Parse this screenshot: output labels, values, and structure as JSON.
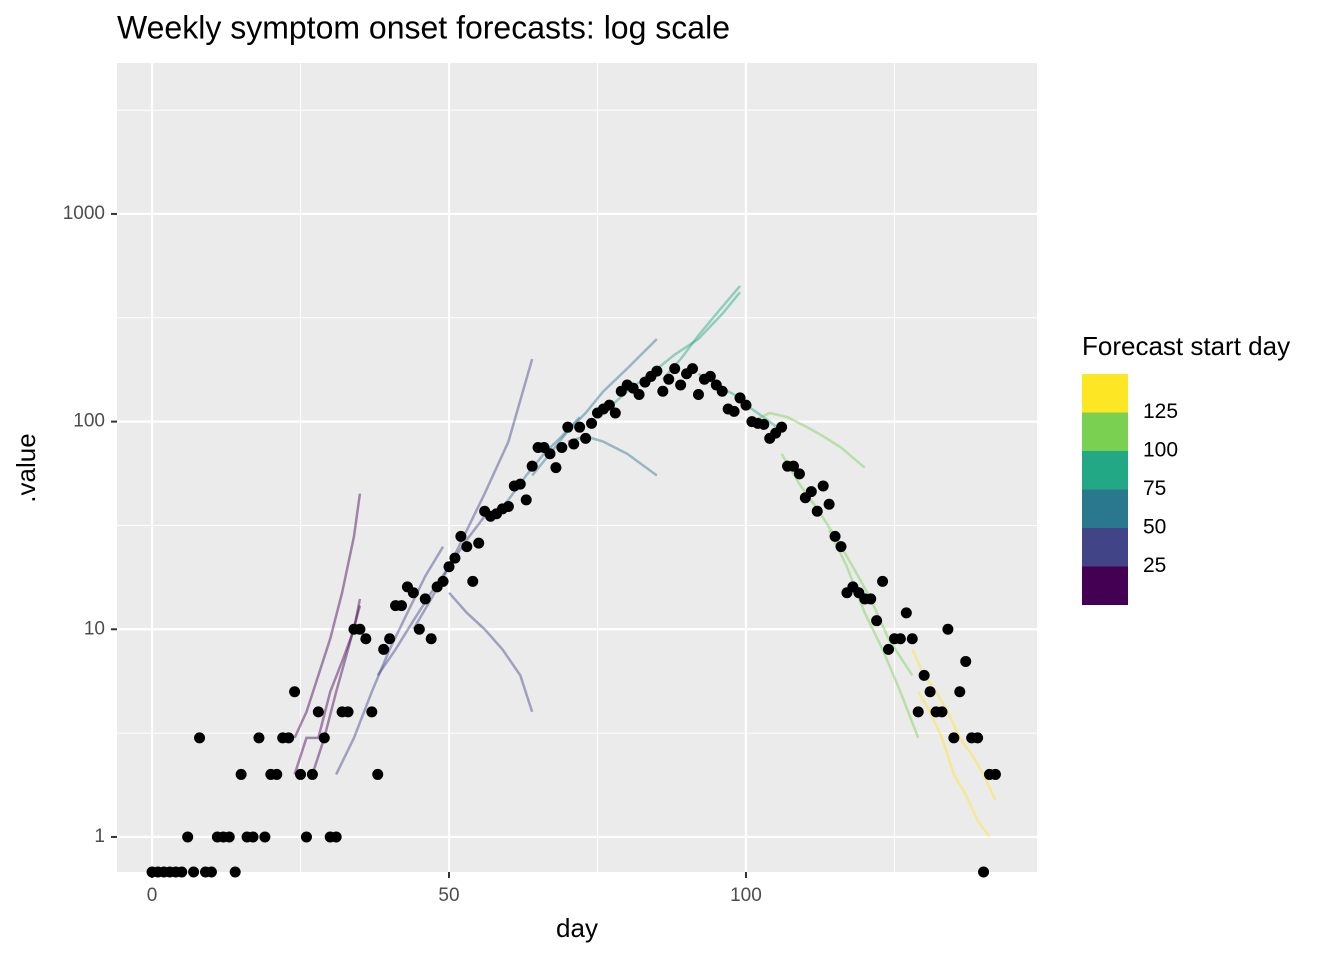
{
  "chart_data": {
    "type": "scatter",
    "title": "Weekly symptom onset forecasts: log scale",
    "x_label": "day",
    "y_label": ".value",
    "log_y": true,
    "grid": true,
    "xlim": [
      -5.9,
      149
    ],
    "xticks": [
      0,
      50,
      100
    ],
    "xminor": [
      25,
      75,
      125
    ],
    "ylim": [
      0.678,
      5330
    ],
    "yticks": [
      1,
      10,
      100,
      1000
    ],
    "yminor": [
      0.3162,
      3.162,
      31.62,
      316.2,
      3162
    ],
    "point_color": "#000000",
    "x": [
      0,
      1,
      2,
      3,
      4,
      5,
      6,
      7,
      8,
      9,
      10,
      11,
      12,
      13,
      14,
      15,
      16,
      17,
      18,
      19,
      20,
      21,
      22,
      23,
      24,
      25,
      26,
      27,
      28,
      29,
      30,
      31,
      32,
      33,
      34,
      35,
      36,
      37,
      38,
      39,
      40,
      41,
      42,
      43,
      44,
      45,
      46,
      47,
      48,
      49,
      50,
      51,
      52,
      53,
      54,
      55,
      56,
      57,
      58,
      59,
      60,
      61,
      62,
      63,
      64,
      65,
      66,
      67,
      68,
      69,
      70,
      71,
      72,
      73,
      74,
      75,
      76,
      77,
      78,
      79,
      80,
      81,
      82,
      83,
      84,
      85,
      86,
      87,
      88,
      89,
      90,
      91,
      92,
      93,
      94,
      95,
      96,
      97,
      98,
      99,
      100,
      101,
      102,
      103,
      104,
      105,
      106,
      107,
      108,
      109,
      110,
      111,
      112,
      113,
      114,
      115,
      116,
      117,
      118,
      119,
      120,
      121,
      122,
      123,
      124,
      125,
      126,
      127,
      128,
      129,
      130,
      131,
      132,
      133,
      134,
      135,
      136,
      137,
      138,
      139,
      140,
      141,
      142
    ],
    "values": [
      0,
      0,
      0,
      0,
      0,
      0,
      1,
      0,
      3,
      0,
      0,
      1,
      1,
      1,
      0,
      2,
      1,
      1,
      3,
      1,
      2,
      2,
      3,
      3,
      5,
      2,
      1,
      2,
      4,
      3,
      1,
      1,
      4,
      4,
      10,
      10,
      9,
      4,
      2,
      8,
      9,
      13,
      13,
      16,
      15,
      10,
      14,
      9,
      16,
      17,
      20,
      22,
      28,
      25,
      17,
      26,
      37,
      35,
      36,
      38,
      39,
      49,
      50,
      42,
      61,
      75,
      75,
      70,
      60,
      75,
      94,
      78,
      94,
      83,
      98,
      110,
      115,
      120,
      110,
      140,
      150,
      145,
      135,
      155,
      165,
      175,
      140,
      160,
      180,
      150,
      170,
      180,
      135,
      160,
      165,
      150,
      140,
      115,
      112,
      130,
      120,
      100,
      98,
      97,
      83,
      88,
      94,
      61,
      61,
      56,
      43,
      46,
      37,
      49,
      40,
      28,
      25,
      15,
      16,
      15,
      14,
      14,
      11,
      17,
      8,
      9,
      9,
      12,
      9,
      4,
      6,
      5,
      4,
      4,
      10,
      3,
      5,
      7,
      3,
      3,
      0,
      2,
      2
    ],
    "forecasts": [
      {
        "color": "#440154",
        "x": [
          24,
          26,
          28,
          30,
          32,
          34,
          35
        ],
        "values": [
          3,
          4,
          6,
          9,
          15,
          28,
          45
        ]
      },
      {
        "color": "#440154",
        "x": [
          24,
          26,
          28,
          30,
          32,
          34,
          35
        ],
        "values": [
          2,
          3,
          3,
          5,
          7,
          10,
          14
        ]
      },
      {
        "color": "#440154",
        "x": [
          27,
          29,
          31,
          33,
          35
        ],
        "values": [
          2,
          3,
          5,
          8,
          13
        ]
      },
      {
        "color": "#414487",
        "x": [
          31,
          34,
          37,
          40,
          43,
          46,
          49
        ],
        "values": [
          2,
          3,
          5,
          8,
          12,
          18,
          25
        ]
      },
      {
        "color": "#414487",
        "x": [
          38,
          41,
          44,
          47,
          50,
          53,
          56
        ],
        "values": [
          6,
          8,
          11,
          15,
          20,
          27,
          35
        ]
      },
      {
        "color": "#414487",
        "x": [
          44,
          47,
          50,
          53,
          56,
          60,
          64
        ],
        "values": [
          10,
          14,
          20,
          30,
          45,
          80,
          200
        ]
      },
      {
        "color": "#414487",
        "x": [
          50,
          53,
          56,
          59,
          62,
          64
        ],
        "values": [
          15,
          12,
          10,
          8,
          6,
          4
        ]
      },
      {
        "color": "#2a788e",
        "x": [
          57,
          60,
          63,
          66,
          69,
          72
        ],
        "values": [
          33,
          42,
          55,
          70,
          85,
          105
        ]
      },
      {
        "color": "#2a788e",
        "x": [
          64,
          67,
          70,
          73,
          76,
          80,
          85
        ],
        "values": [
          55,
          70,
          90,
          110,
          140,
          180,
          250
        ]
      },
      {
        "color": "#2a788e",
        "x": [
          70,
          73,
          76,
          80,
          85
        ],
        "values": [
          80,
          85,
          80,
          70,
          55
        ]
      },
      {
        "color": "#22a884",
        "x": [
          76,
          80,
          84,
          88,
          92,
          96,
          99
        ],
        "values": [
          110,
          140,
          170,
          210,
          250,
          330,
          420
        ]
      },
      {
        "color": "#22a884",
        "x": [
          86,
          89,
          92,
          95,
          99
        ],
        "values": [
          160,
          200,
          260,
          330,
          450
        ]
      },
      {
        "color": "#22a884",
        "x": [
          92,
          95,
          98,
          101,
          104,
          106
        ],
        "values": [
          170,
          150,
          135,
          115,
          100,
          90
        ]
      },
      {
        "color": "#7ad151",
        "x": [
          101,
          104,
          107,
          110,
          113,
          116,
          120
        ],
        "values": [
          100,
          110,
          105,
          95,
          85,
          75,
          60
        ]
      },
      {
        "color": "#7ad151",
        "x": [
          106,
          109,
          112,
          115,
          118,
          121,
          124,
          128
        ],
        "values": [
          70,
          50,
          38,
          28,
          20,
          14,
          9,
          6
        ]
      },
      {
        "color": "#7ad151",
        "x": [
          114,
          117,
          120,
          123,
          126,
          129
        ],
        "values": [
          30,
          20,
          12,
          8,
          5,
          3
        ]
      },
      {
        "color": "#fde725",
        "x": [
          128,
          130,
          132,
          134,
          136,
          138,
          140,
          142
        ],
        "values": [
          8,
          6,
          5,
          4,
          3,
          2.5,
          2,
          1.5
        ]
      },
      {
        "color": "#fde725",
        "x": [
          129,
          131,
          133,
          135,
          137,
          139,
          141
        ],
        "values": [
          5,
          4,
          3,
          2,
          1.6,
          1.2,
          1
        ]
      }
    ],
    "legend": {
      "title": "Forecast start day",
      "breaks": [
        25,
        50,
        75,
        100,
        125
      ],
      "colors": [
        "#440154",
        "#414487",
        "#2a788e",
        "#22a884",
        "#7ad151",
        "#fde725"
      ]
    }
  }
}
